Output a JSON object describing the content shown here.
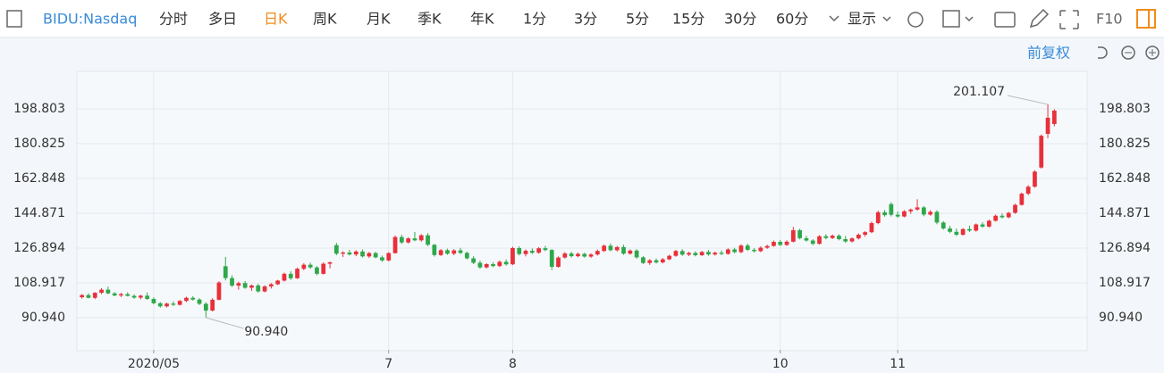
{
  "toolbar": {
    "symbol": "BIDU:Nasdaq",
    "periods": [
      "分时",
      "多日",
      "日K",
      "周K",
      "月K",
      "季K",
      "年K",
      "1分",
      "3分",
      "5分",
      "15分",
      "30分",
      "60分"
    ],
    "active": 2,
    "display": "显示",
    "f10": "F10",
    "adjust": "前复权"
  },
  "chart_data": {
    "type": "candlestick",
    "up_color": "#e8303b",
    "down_color": "#2ea84a",
    "grid": true,
    "ylim": [
      74.35,
      218.16
    ],
    "yticks": [
      {
        "value": 90.94,
        "label": "90.940"
      },
      {
        "value": 108.917,
        "label": "108.917"
      },
      {
        "value": 126.894,
        "label": "126.894"
      },
      {
        "value": 144.871,
        "label": "144.871"
      },
      {
        "value": 162.848,
        "label": "162.848"
      },
      {
        "value": 180.825,
        "label": "180.825"
      },
      {
        "value": 198.803,
        "label": "198.803"
      }
    ],
    "high_label": {
      "value": 201.107,
      "label": "201.107"
    },
    "low_label": {
      "value": 90.94,
      "label": "90.940"
    },
    "categories": [
      null,
      null,
      null,
      null,
      null,
      null,
      null,
      null,
      null,
      null,
      null,
      "2020/05",
      null,
      null,
      null,
      null,
      null,
      null,
      null,
      null,
      null,
      null,
      null,
      null,
      null,
      null,
      null,
      null,
      null,
      null,
      null,
      null,
      null,
      null,
      null,
      null,
      null,
      null,
      null,
      null,
      null,
      null,
      null,
      null,
      null,
      null,
      null,
      "7",
      null,
      null,
      null,
      null,
      null,
      null,
      null,
      null,
      null,
      null,
      null,
      null,
      null,
      null,
      null,
      null,
      null,
      null,
      "8",
      null,
      null,
      null,
      null,
      null,
      null,
      null,
      null,
      null,
      null,
      null,
      null,
      null,
      null,
      null,
      null,
      null,
      null,
      null,
      null,
      null,
      null,
      null,
      null,
      null,
      null,
      null,
      null,
      null,
      null,
      null,
      null,
      null,
      null,
      null,
      null,
      null,
      null,
      null,
      null,
      "10",
      null,
      null,
      null,
      null,
      null,
      null,
      null,
      null,
      null,
      null,
      null,
      null,
      null,
      null,
      null,
      null,
      null,
      "11",
      null,
      null,
      null,
      null,
      null,
      null,
      null,
      null,
      null,
      null,
      null,
      null,
      null,
      null,
      null,
      null,
      null,
      null,
      null,
      null,
      null,
      null,
      null,
      null,
      null,
      null,
      null,
      null
    ],
    "ohlc": [
      [
        101.5,
        103.2,
        100.8,
        102.6
      ],
      [
        102.6,
        103.5,
        100.9,
        101.2
      ],
      [
        101.2,
        104.1,
        100.5,
        103.8
      ],
      [
        103.8,
        106.2,
        103.1,
        105.4
      ],
      [
        105.4,
        107.0,
        103.0,
        103.5
      ],
      [
        103.5,
        104.2,
        102.0,
        102.4
      ],
      [
        102.4,
        103.8,
        101.6,
        103.1
      ],
      [
        103.1,
        104.0,
        101.9,
        102.2
      ],
      [
        102.2,
        103.0,
        100.7,
        101.3
      ],
      [
        101.3,
        102.8,
        100.4,
        102.3
      ],
      [
        102.3,
        104.0,
        100.2,
        100.6
      ],
      [
        100.6,
        101.5,
        97.8,
        98.4
      ],
      [
        98.4,
        99.0,
        96.1,
        96.8
      ],
      [
        96.8,
        98.7,
        96.2,
        98.2
      ],
      [
        98.2,
        99.4,
        97.0,
        97.6
      ],
      [
        97.6,
        100.1,
        97.2,
        99.6
      ],
      [
        99.6,
        101.8,
        99.0,
        101.2
      ],
      [
        101.2,
        102.0,
        99.8,
        100.3
      ],
      [
        100.3,
        101.0,
        97.5,
        98.1
      ],
      [
        98.1,
        98.9,
        90.94,
        94.6
      ],
      [
        94.6,
        101.0,
        94.2,
        100.2
      ],
      [
        100.2,
        109.8,
        99.9,
        109.1
      ],
      [
        117.5,
        122.3,
        110.2,
        111.4
      ],
      [
        111.4,
        112.8,
        106.8,
        107.5
      ],
      [
        107.5,
        109.6,
        105.4,
        108.8
      ],
      [
        108.8,
        109.9,
        105.9,
        106.4
      ],
      [
        106.4,
        108.1,
        104.8,
        107.6
      ],
      [
        107.6,
        108.4,
        103.9,
        104.5
      ],
      [
        104.5,
        107.7,
        104.0,
        107.1
      ],
      [
        107.1,
        108.8,
        106.0,
        108.2
      ],
      [
        108.2,
        110.5,
        107.8,
        110.1
      ],
      [
        110.1,
        114.2,
        109.6,
        113.6
      ],
      [
        113.6,
        114.9,
        110.4,
        111.3
      ],
      [
        111.3,
        116.8,
        111.0,
        116.2
      ],
      [
        116.2,
        119.1,
        115.4,
        118.3
      ],
      [
        118.3,
        119.4,
        116.2,
        116.9
      ],
      [
        116.9,
        117.6,
        112.8,
        113.6
      ],
      [
        113.6,
        119.5,
        113.2,
        118.8
      ],
      [
        118.8,
        120.0,
        116.4,
        119.5
      ],
      [
        128.4,
        129.6,
        123.2,
        124.0
      ],
      [
        124.0,
        125.3,
        122.3,
        124.6
      ],
      [
        124.6,
        126.0,
        123.1,
        123.6
      ],
      [
        123.6,
        125.8,
        122.7,
        125.1
      ],
      [
        125.1,
        126.2,
        122.0,
        122.6
      ],
      [
        122.6,
        124.9,
        121.8,
        124.3
      ],
      [
        124.3,
        125.0,
        121.6,
        122.1
      ],
      [
        122.1,
        123.0,
        119.8,
        120.5
      ],
      [
        120.5,
        124.8,
        120.0,
        124.3
      ],
      [
        124.3,
        133.4,
        124.0,
        132.6
      ],
      [
        132.6,
        133.8,
        129.0,
        129.8
      ],
      [
        129.8,
        132.5,
        129.3,
        131.9
      ],
      [
        131.9,
        135.2,
        130.4,
        130.9
      ],
      [
        130.9,
        134.1,
        130.2,
        133.5
      ],
      [
        133.5,
        134.6,
        127.9,
        128.6
      ],
      [
        128.6,
        129.0,
        122.5,
        123.3
      ],
      [
        123.3,
        126.4,
        122.8,
        125.8
      ],
      [
        125.8,
        126.6,
        123.4,
        124.0
      ],
      [
        124.0,
        126.3,
        123.2,
        125.7
      ],
      [
        125.7,
        127.0,
        123.8,
        124.4
      ],
      [
        124.4,
        125.1,
        121.0,
        121.6
      ],
      [
        121.6,
        122.7,
        118.6,
        119.3
      ],
      [
        119.3,
        120.4,
        116.2,
        116.9
      ],
      [
        116.9,
        119.1,
        116.4,
        118.6
      ],
      [
        118.6,
        119.6,
        117.0,
        117.6
      ],
      [
        117.6,
        120.5,
        117.1,
        119.8
      ],
      [
        119.8,
        121.0,
        117.8,
        118.5
      ],
      [
        118.5,
        127.6,
        118.1,
        126.9
      ],
      [
        126.9,
        127.8,
        123.1,
        123.8
      ],
      [
        123.8,
        126.2,
        122.6,
        125.5
      ],
      [
        125.5,
        126.7,
        123.8,
        124.5
      ],
      [
        124.5,
        127.4,
        124.0,
        126.8
      ],
      [
        126.8,
        128.0,
        125.3,
        125.9
      ],
      [
        125.9,
        126.4,
        115.6,
        117.2
      ],
      [
        117.2,
        122.6,
        116.8,
        122.0
      ],
      [
        122.0,
        124.8,
        121.5,
        124.1
      ],
      [
        124.1,
        125.0,
        122.0,
        122.7
      ],
      [
        122.7,
        124.6,
        122.1,
        123.9
      ],
      [
        123.9,
        124.5,
        121.9,
        122.5
      ],
      [
        122.5,
        124.2,
        121.8,
        123.6
      ],
      [
        123.6,
        126.1,
        123.0,
        125.4
      ],
      [
        125.4,
        128.8,
        124.9,
        128.1
      ],
      [
        128.1,
        129.3,
        125.2,
        125.8
      ],
      [
        125.8,
        128.0,
        125.1,
        127.4
      ],
      [
        127.4,
        128.6,
        123.4,
        124.0
      ],
      [
        124.0,
        126.2,
        123.5,
        125.6
      ],
      [
        125.6,
        126.3,
        121.4,
        122.1
      ],
      [
        122.1,
        122.8,
        118.6,
        119.2
      ],
      [
        119.2,
        121.2,
        118.2,
        120.6
      ],
      [
        120.6,
        121.5,
        118.9,
        119.5
      ],
      [
        119.5,
        121.8,
        119.0,
        121.1
      ],
      [
        121.1,
        123.5,
        120.6,
        122.9
      ],
      [
        122.9,
        126.0,
        122.4,
        125.4
      ],
      [
        125.4,
        126.3,
        122.9,
        123.5
      ],
      [
        123.5,
        125.0,
        122.8,
        124.4
      ],
      [
        124.4,
        125.2,
        122.6,
        123.2
      ],
      [
        123.2,
        125.4,
        122.8,
        124.9
      ],
      [
        124.9,
        125.9,
        122.9,
        123.6
      ],
      [
        123.6,
        125.1,
        123.0,
        124.5
      ],
      [
        124.5,
        125.7,
        123.2,
        123.9
      ],
      [
        123.9,
        126.8,
        123.5,
        126.2
      ],
      [
        126.2,
        127.0,
        124.2,
        124.8
      ],
      [
        124.8,
        128.9,
        124.3,
        128.2
      ],
      [
        128.2,
        129.2,
        125.4,
        126.0
      ],
      [
        126.0,
        126.9,
        124.6,
        125.3
      ],
      [
        125.3,
        127.8,
        124.8,
        127.1
      ],
      [
        127.1,
        128.6,
        126.5,
        128.0
      ],
      [
        128.0,
        130.8,
        127.6,
        130.1
      ],
      [
        130.1,
        131.0,
        127.9,
        128.5
      ],
      [
        128.5,
        130.9,
        128.0,
        130.2
      ],
      [
        130.2,
        137.8,
        129.8,
        136.1
      ],
      [
        136.1,
        136.9,
        131.4,
        132.0
      ],
      [
        132.0,
        133.2,
        130.2,
        130.8
      ],
      [
        130.8,
        131.5,
        128.4,
        129.1
      ],
      [
        129.1,
        133.6,
        128.7,
        133.0
      ],
      [
        133.0,
        134.1,
        131.4,
        132.1
      ],
      [
        132.1,
        133.9,
        131.5,
        133.3
      ],
      [
        133.3,
        134.0,
        130.9,
        131.5
      ],
      [
        131.5,
        133.2,
        129.6,
        130.3
      ],
      [
        130.3,
        132.4,
        129.8,
        131.9
      ],
      [
        131.9,
        134.5,
        131.3,
        133.8
      ],
      [
        133.8,
        135.6,
        132.8,
        135.1
      ],
      [
        135.1,
        140.6,
        134.6,
        139.8
      ],
      [
        139.8,
        146.2,
        139.2,
        145.4
      ],
      [
        145.4,
        146.6,
        143.1,
        143.9
      ],
      [
        149.6,
        150.6,
        143.2,
        144.1
      ],
      [
        144.1,
        145.8,
        142.5,
        143.2
      ],
      [
        143.2,
        146.5,
        142.8,
        145.9
      ],
      [
        145.9,
        147.3,
        144.6,
        146.8
      ],
      [
        146.8,
        152.1,
        146.2,
        147.9
      ],
      [
        147.9,
        148.6,
        143.3,
        144.2
      ],
      [
        144.2,
        146.5,
        143.6,
        145.6
      ],
      [
        145.6,
        146.4,
        139.2,
        140.1
      ],
      [
        140.1,
        140.8,
        136.4,
        137.0
      ],
      [
        137.0,
        138.4,
        134.6,
        135.3
      ],
      [
        135.3,
        137.0,
        133.1,
        133.8
      ],
      [
        133.8,
        137.2,
        133.3,
        136.7
      ],
      [
        136.7,
        138.5,
        135.2,
        135.9
      ],
      [
        135.9,
        139.6,
        135.4,
        139.1
      ],
      [
        139.1,
        140.2,
        137.4,
        138.0
      ],
      [
        138.0,
        141.6,
        137.5,
        141.0
      ],
      [
        141.0,
        144.2,
        140.6,
        143.6
      ],
      [
        143.6,
        144.8,
        142.2,
        142.8
      ],
      [
        142.8,
        145.6,
        142.3,
        145.1
      ],
      [
        145.1,
        149.8,
        144.6,
        149.2
      ],
      [
        149.2,
        155.6,
        148.8,
        155.0
      ],
      [
        155.0,
        159.4,
        154.2,
        158.6
      ],
      [
        158.6,
        167.1,
        158.1,
        166.4
      ],
      [
        168.5,
        185.6,
        167.9,
        184.9
      ],
      [
        185.9,
        201.107,
        183.6,
        194.2
      ],
      [
        191.0,
        198.6,
        189.8,
        197.9
      ]
    ]
  }
}
